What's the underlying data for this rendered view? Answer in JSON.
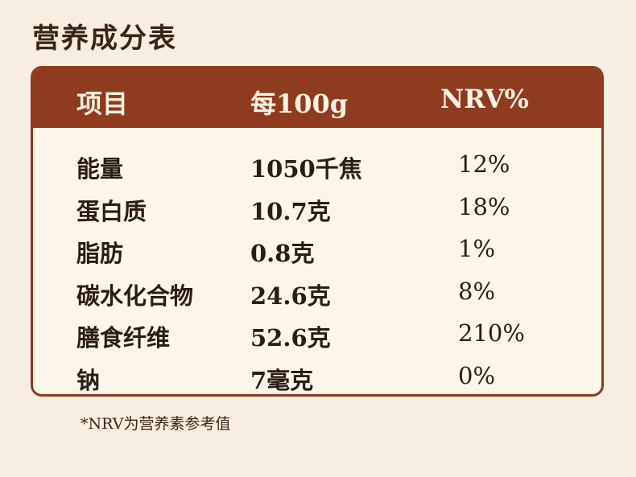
{
  "title": "营养成分表",
  "table": {
    "headers": [
      "项目",
      "每100g",
      "NRV%"
    ],
    "rows": [
      {
        "item": "能量",
        "per100g": "1050千焦",
        "nrv": "12%"
      },
      {
        "item": "蛋白质",
        "per100g": "10.7克",
        "nrv": "18%"
      },
      {
        "item": "脂肪",
        "per100g": "0.8克",
        "nrv": "1%"
      },
      {
        "item": "碳水化合物",
        "per100g": "24.6克",
        "nrv": "8%"
      },
      {
        "item": "膳食纤维",
        "per100g": "52.6克",
        "nrv": "210%"
      },
      {
        "item": "钠",
        "per100g": "7毫克",
        "nrv": "0%"
      }
    ]
  },
  "footnote": "*NRV为营养素参考值",
  "colors": {
    "header_bg": "#8e3b1f",
    "page_bg": "#f7ede0",
    "card_bg": "#fdf5e8"
  }
}
